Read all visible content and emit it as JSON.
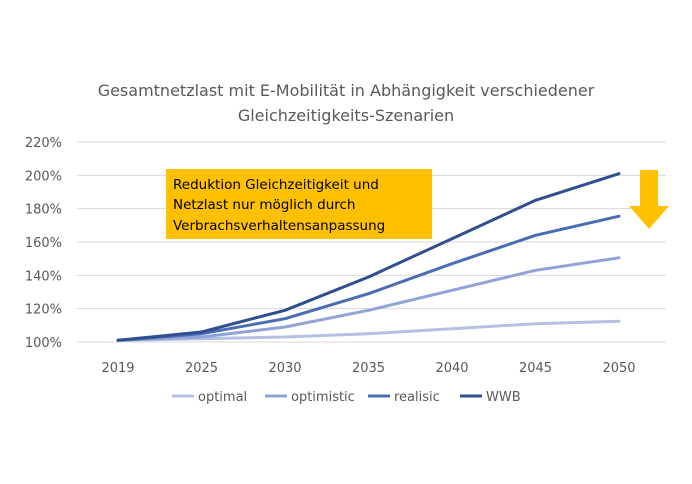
{
  "chart_data": {
    "type": "line",
    "title_lines": [
      "Gesamtnetzlast mit E-Mobilität in Abhängigkeit verschiedener",
      "Gleichzeitigkeits-Szenarien"
    ],
    "categories": [
      "2019",
      "2025",
      "2030",
      "2035",
      "2040",
      "2045",
      "2050"
    ],
    "ylim": [
      1.0,
      2.2
    ],
    "yticks": [
      1.0,
      1.2,
      1.4,
      1.6,
      1.8,
      2.0,
      2.2
    ],
    "ytick_labels": [
      "100%",
      "120%",
      "140%",
      "160%",
      "180%",
      "200%",
      "220%"
    ],
    "xlabel": "",
    "ylabel": "",
    "grid": true,
    "legend_position": "bottom",
    "series": [
      {
        "name": "optimal",
        "color": "#b4c1e4",
        "values": [
          1.01,
          1.02,
          1.03,
          1.05,
          1.08,
          1.11,
          1.125
        ]
      },
      {
        "name": "optimistic",
        "color": "#8ea3d8",
        "values": [
          1.01,
          1.03,
          1.09,
          1.19,
          1.31,
          1.43,
          1.505
        ]
      },
      {
        "name": "realisic",
        "color": "#4a6cb3",
        "values": [
          1.01,
          1.05,
          1.14,
          1.29,
          1.47,
          1.64,
          1.755
        ]
      },
      {
        "name": "WWB",
        "color": "#2f4f8f",
        "values": [
          1.01,
          1.06,
          1.19,
          1.39,
          1.62,
          1.85,
          2.01
        ]
      }
    ],
    "annotation": {
      "lines": [
        "Reduktion Gleichzeitigkeit und",
        "Netzlast nur möglich durch",
        "Verbrachsverhaltensanpassung"
      ],
      "background": "#ffc000",
      "arrow_color": "#ffc000",
      "arrow_direction": "down"
    }
  }
}
